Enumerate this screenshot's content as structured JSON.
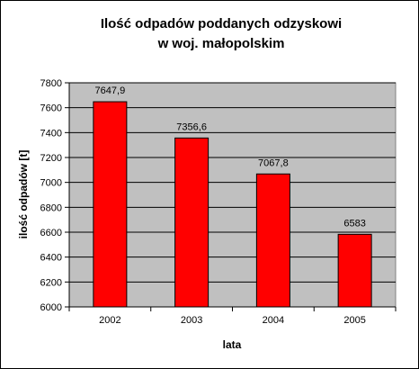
{
  "chart_data": {
    "type": "bar",
    "title": [
      "Ilość odpadów poddanych odzyskowi",
      "w woj. małopolskim"
    ],
    "xlabel": "lata",
    "ylabel": "ilość odpadów [t]",
    "categories": [
      "2002",
      "2003",
      "2004",
      "2005"
    ],
    "values": [
      7647.9,
      7356.6,
      7067.8,
      6583
    ],
    "value_labels": [
      "7647,9",
      "7356,6",
      "7067,8",
      "6583"
    ],
    "ylim": [
      6000,
      7800
    ],
    "yticks": [
      6000,
      6200,
      6400,
      6600,
      6800,
      7000,
      7200,
      7400,
      7600,
      7800
    ],
    "grid": true,
    "legend": "none",
    "colors": {
      "bar": "#ff0000",
      "plot_background": "#c0c0c0",
      "gridline": "#000000"
    }
  }
}
